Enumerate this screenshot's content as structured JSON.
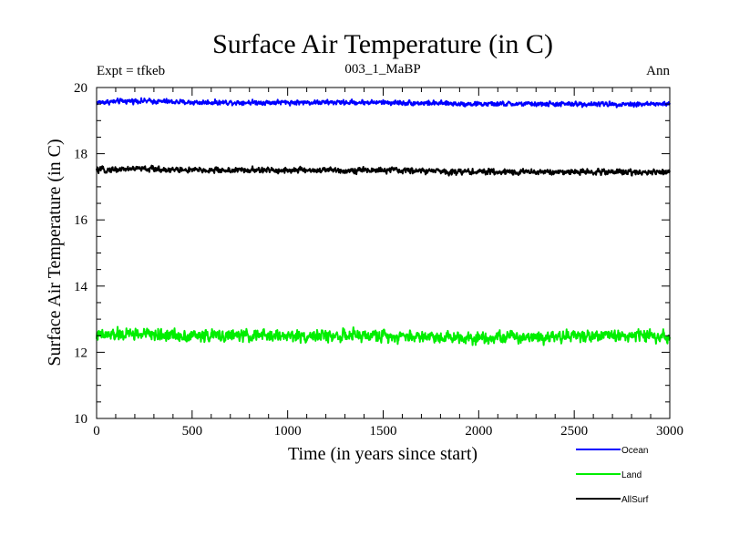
{
  "chart_data": {
    "type": "line",
    "title": "Surface Air Temperature (in C)",
    "subtitle_left": "Expt = tfkeb",
    "subtitle_center": "003_1_MaBP",
    "subtitle_right": "Ann",
    "xlabel": "Time (in years since start)",
    "ylabel": "Surface Air Temperature (in C)",
    "xlim": [
      0,
      3000
    ],
    "ylim": [
      10,
      20
    ],
    "xticks": [
      0,
      500,
      1000,
      1500,
      2000,
      2500,
      3000
    ],
    "yticks": [
      10,
      12,
      14,
      16,
      18,
      20
    ],
    "legend_position": "bottom-right",
    "grid": false,
    "series": [
      {
        "name": "Ocean",
        "color": "#0000ff",
        "mean": 19.55,
        "noise_amplitude": 0.1,
        "x": [
          0,
          200,
          500,
          1000,
          1500,
          2000,
          2500,
          3000
        ],
        "y": [
          19.55,
          19.6,
          19.55,
          19.55,
          19.55,
          19.5,
          19.5,
          19.5
        ]
      },
      {
        "name": "Land",
        "color": "#00ee00",
        "mean": 12.5,
        "noise_amplitude": 0.25,
        "x": [
          0,
          200,
          500,
          1000,
          1500,
          2000,
          2500,
          3000
        ],
        "y": [
          12.5,
          12.55,
          12.5,
          12.5,
          12.5,
          12.45,
          12.5,
          12.5
        ]
      },
      {
        "name": "AllSurf",
        "color": "#000000",
        "mean": 17.5,
        "noise_amplitude": 0.12,
        "x": [
          0,
          200,
          500,
          1000,
          1500,
          2000,
          2500,
          3000
        ],
        "y": [
          17.5,
          17.55,
          17.5,
          17.5,
          17.5,
          17.45,
          17.45,
          17.45
        ]
      }
    ]
  }
}
